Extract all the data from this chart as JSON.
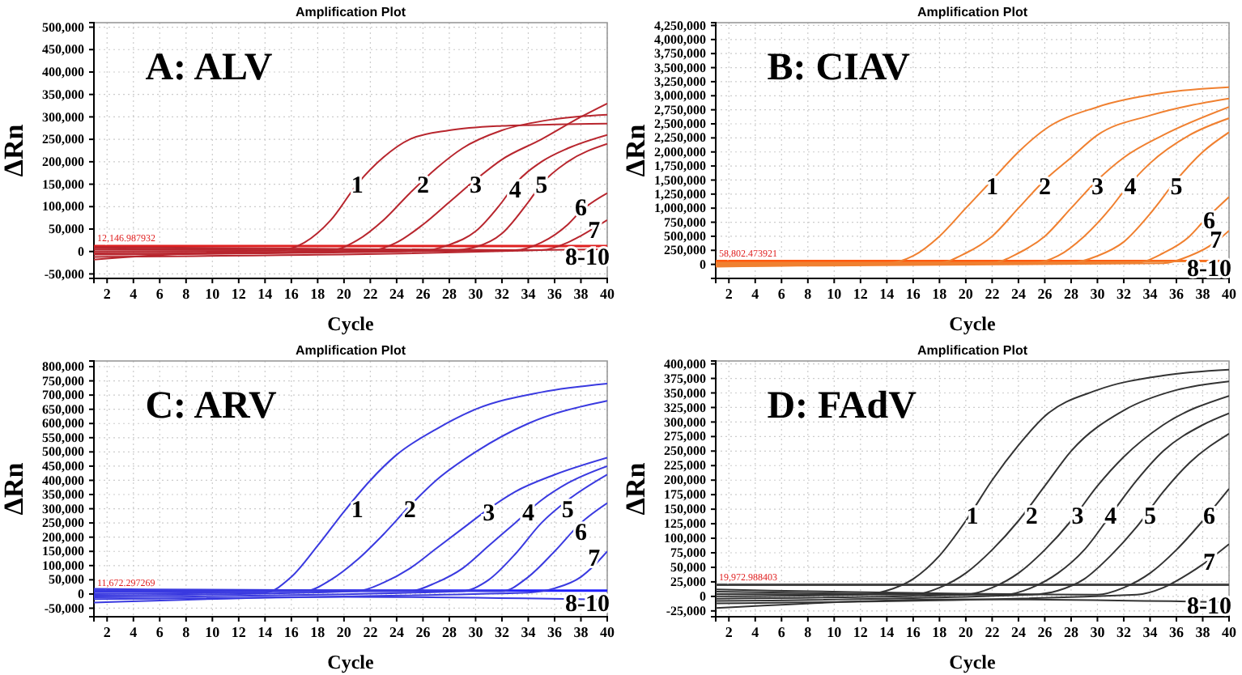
{
  "chart_data": [
    {
      "type": "line",
      "title": "Amplification Plot",
      "xlabel": "Cycle",
      "ylabel": "ΔRn",
      "grid": true,
      "line_style": "solid",
      "xlim": [
        1,
        40
      ],
      "xticks": [
        2,
        4,
        6,
        8,
        10,
        12,
        14,
        16,
        18,
        20,
        22,
        24,
        26,
        28,
        30,
        32,
        34,
        36,
        38,
        40
      ],
      "ylim": [
        -60000,
        510000
      ],
      "yticks": [
        {
          "value": -50000,
          "label": "-50,000"
        },
        {
          "value": 0,
          "label": "0"
        },
        {
          "value": 50000,
          "label": "50,000"
        },
        {
          "value": 100000,
          "label": "100,000"
        },
        {
          "value": 150000,
          "label": "150,000"
        },
        {
          "value": 200000,
          "label": "200,000"
        },
        {
          "value": 250000,
          "label": "250,000"
        },
        {
          "value": 300000,
          "label": "300,000"
        },
        {
          "value": 350000,
          "label": "350,000"
        },
        {
          "value": 400000,
          "label": "400,000"
        },
        {
          "value": 450000,
          "label": "450,000"
        },
        {
          "value": 500000,
          "label": "500,000"
        }
      ],
      "ref_lines": [
        {
          "axis": "y",
          "value": 12146.987932,
          "label": "12,146.987932",
          "color": "#e02020"
        }
      ],
      "series": [
        {
          "color": "#b8262e",
          "x": [
            1,
            15,
            17,
            19,
            21,
            23,
            25,
            28,
            32,
            36,
            40
          ],
          "values": [
            0,
            2000,
            20000,
            70000,
            150000,
            210000,
            250000,
            270000,
            280000,
            283000,
            285000
          ]
        },
        {
          "color": "#b8262e",
          "x": [
            1,
            19,
            21,
            23,
            25,
            27,
            29,
            32,
            36,
            40
          ],
          "values": [
            4000,
            3000,
            25000,
            70000,
            130000,
            185000,
            230000,
            270000,
            295000,
            305000
          ]
        },
        {
          "color": "#b8262e",
          "x": [
            1,
            22,
            24,
            26,
            28,
            30,
            32,
            35,
            38,
            40
          ],
          "values": [
            -4000,
            2000,
            20000,
            60000,
            110000,
            160000,
            205000,
            250000,
            300000,
            330000
          ]
        },
        {
          "color": "#b8262e",
          "x": [
            1,
            26,
            28,
            30,
            32,
            33,
            35,
            37,
            40
          ],
          "values": [
            7000,
            2000,
            15000,
            45000,
            110000,
            150000,
            200000,
            230000,
            260000
          ]
        },
        {
          "color": "#b8262e",
          "x": [
            1,
            28,
            30,
            32,
            34,
            35,
            37,
            40
          ],
          "values": [
            -7000,
            2000,
            10000,
            40000,
            110000,
            150000,
            200000,
            240000
          ]
        },
        {
          "color": "#b8262e",
          "x": [
            1,
            33,
            35,
            37,
            38,
            40
          ],
          "values": [
            10000,
            3000,
            20000,
            60000,
            90000,
            130000
          ]
        },
        {
          "color": "#b8262e",
          "x": [
            1,
            35,
            37,
            38,
            40
          ],
          "values": [
            -12000,
            3000,
            20000,
            35000,
            70000
          ]
        },
        {
          "color": "#b8262e",
          "x": [
            1,
            10,
            20,
            30,
            40
          ],
          "values": [
            -18000,
            -3000,
            0,
            2000,
            5000
          ]
        }
      ],
      "annotations": [
        "A: ALV",
        {
          "text": "1",
          "x": 21,
          "y": 150000
        },
        {
          "text": "2",
          "x": 26,
          "y": 150000
        },
        {
          "text": "3",
          "x": 30,
          "y": 150000
        },
        {
          "text": "4",
          "x": 33,
          "y": 140000
        },
        {
          "text": "5",
          "x": 35,
          "y": 150000
        },
        {
          "text": "6",
          "x": 38,
          "y": 100000
        },
        {
          "text": "7",
          "x": 39,
          "y": 50000
        },
        {
          "text": "8-10",
          "x": 38.5,
          "y": -10000
        }
      ]
    },
    {
      "type": "line",
      "title": "Amplification Plot",
      "xlabel": "Cycle",
      "ylabel": "ΔRn",
      "grid": true,
      "line_style": "solid",
      "xlim": [
        1,
        40
      ],
      "xticks": [
        2,
        4,
        6,
        8,
        10,
        12,
        14,
        16,
        18,
        20,
        22,
        24,
        26,
        28,
        30,
        32,
        34,
        36,
        38,
        40
      ],
      "ylim": [
        -250000,
        4300000
      ],
      "yticks": [
        {
          "value": 0,
          "label": "0"
        },
        {
          "value": 250000,
          "label": "250,000"
        },
        {
          "value": 500000,
          "label": "500,000"
        },
        {
          "value": 750000,
          "label": "750,000"
        },
        {
          "value": 1000000,
          "label": "1,000,000"
        },
        {
          "value": 1250000,
          "label": "1,250,000"
        },
        {
          "value": 1500000,
          "label": "1,500,000"
        },
        {
          "value": 1750000,
          "label": "1,750,000"
        },
        {
          "value": 2000000,
          "label": "2,000,000"
        },
        {
          "value": 2250000,
          "label": "2,250,000"
        },
        {
          "value": 2500000,
          "label": "2,500,000"
        },
        {
          "value": 2750000,
          "label": "2,750,000"
        },
        {
          "value": 3000000,
          "label": "3,000,000"
        },
        {
          "value": 3250000,
          "label": "3,250,000"
        },
        {
          "value": 3500000,
          "label": "3,500,000"
        },
        {
          "value": 3750000,
          "label": "3,750,000"
        },
        {
          "value": 4000000,
          "label": "4,000,000"
        },
        {
          "value": 4250000,
          "label": "4,250,000"
        }
      ],
      "ref_lines": [
        {
          "axis": "y",
          "value": 58802.473921,
          "label": "58,802.473921",
          "color": "#ff5a10"
        }
      ],
      "series": [
        {
          "color": "#f08030",
          "x": [
            1,
            14,
            16,
            18,
            20,
            22,
            24,
            26,
            30,
            35,
            40
          ],
          "values": [
            0,
            20000,
            150000,
            500000,
            1000000,
            1500000,
            2000000,
            2400000,
            2800000,
            3050000,
            3150000
          ]
        },
        {
          "color": "#f08030",
          "x": [
            1,
            18,
            20,
            22,
            24,
            26,
            28,
            30,
            34,
            40
          ],
          "values": [
            10000,
            30000,
            200000,
            500000,
            1000000,
            1500000,
            1900000,
            2300000,
            2650000,
            2950000
          ]
        },
        {
          "color": "#f08030",
          "x": [
            1,
            22,
            24,
            26,
            28,
            30,
            32,
            35,
            40
          ],
          "values": [
            -10000,
            30000,
            200000,
            500000,
            1000000,
            1500000,
            1900000,
            2300000,
            2800000
          ]
        },
        {
          "color": "#f08030",
          "x": [
            1,
            25,
            27,
            29,
            31,
            32,
            34,
            37,
            40
          ],
          "values": [
            20000,
            20000,
            150000,
            500000,
            1000000,
            1300000,
            1800000,
            2300000,
            2600000
          ]
        },
        {
          "color": "#f08030",
          "x": [
            1,
            28,
            30,
            32,
            34,
            36,
            38,
            40
          ],
          "values": [
            -20000,
            30000,
            150000,
            400000,
            900000,
            1500000,
            2000000,
            2350000
          ]
        },
        {
          "color": "#f08030",
          "x": [
            1,
            33,
            35,
            37,
            38,
            40
          ],
          "values": [
            30000,
            30000,
            200000,
            500000,
            750000,
            1200000
          ]
        },
        {
          "color": "#f08030",
          "x": [
            1,
            35,
            37,
            39,
            40
          ],
          "values": [
            -30000,
            20000,
            150000,
            400000,
            600000
          ]
        },
        {
          "color": "#f08030",
          "x": [
            1,
            20,
            40
          ],
          "values": [
            -40000,
            20000,
            60000
          ]
        }
      ],
      "annotations": [
        "B: CIAV",
        {
          "text": "1",
          "x": 22,
          "y": 1400000
        },
        {
          "text": "2",
          "x": 26,
          "y": 1400000
        },
        {
          "text": "3",
          "x": 30,
          "y": 1400000
        },
        {
          "text": "4",
          "x": 32.5,
          "y": 1400000
        },
        {
          "text": "5",
          "x": 36,
          "y": 1400000
        },
        {
          "text": "6",
          "x": 38.5,
          "y": 800000
        },
        {
          "text": "7",
          "x": 39,
          "y": 450000
        },
        {
          "text": "8-10",
          "x": 38.5,
          "y": -50000
        }
      ]
    },
    {
      "type": "line",
      "title": "Amplification Plot",
      "xlabel": "Cycle",
      "ylabel": "ΔRn",
      "grid": true,
      "line_style": "solid",
      "xlim": [
        1,
        40
      ],
      "xticks": [
        2,
        4,
        6,
        8,
        10,
        12,
        14,
        16,
        18,
        20,
        22,
        24,
        26,
        28,
        30,
        32,
        34,
        36,
        38,
        40
      ],
      "ylim": [
        -80000,
        820000
      ],
      "yticks": [
        {
          "value": -50000,
          "label": "-50,000"
        },
        {
          "value": 0,
          "label": "0"
        },
        {
          "value": 50000,
          "label": "50,000"
        },
        {
          "value": 100000,
          "label": "100,000"
        },
        {
          "value": 150000,
          "label": "150,000"
        },
        {
          "value": 200000,
          "label": "200,000"
        },
        {
          "value": 250000,
          "label": "250,000"
        },
        {
          "value": 300000,
          "label": "300,000"
        },
        {
          "value": 350000,
          "label": "350,000"
        },
        {
          "value": 400000,
          "label": "400,000"
        },
        {
          "value": 450000,
          "label": "450,000"
        },
        {
          "value": 500000,
          "label": "500,000"
        },
        {
          "value": 550000,
          "label": "550,000"
        },
        {
          "value": 600000,
          "label": "600,000"
        },
        {
          "value": 650000,
          "label": "650,000"
        },
        {
          "value": 700000,
          "label": "700,000"
        },
        {
          "value": 750000,
          "label": "750,000"
        },
        {
          "value": 800000,
          "label": "800,000"
        }
      ],
      "ref_lines": [
        {
          "axis": "y",
          "value": 11672.297269,
          "label": "11,672.297269",
          "color": "#2020ff"
        }
      ],
      "series": [
        {
          "color": "#3a3ae0",
          "x": [
            1,
            14,
            16,
            18,
            20,
            22,
            24,
            27,
            30,
            35,
            40
          ],
          "values": [
            0,
            5000,
            60000,
            170000,
            290000,
            400000,
            490000,
            580000,
            650000,
            710000,
            740000
          ]
        },
        {
          "color": "#3a3ae0",
          "x": [
            1,
            17,
            19,
            21,
            23,
            25,
            27,
            30,
            34,
            40
          ],
          "values": [
            6000,
            10000,
            50000,
            120000,
            210000,
            310000,
            400000,
            500000,
            600000,
            680000
          ]
        },
        {
          "color": "#3a3ae0",
          "x": [
            1,
            21,
            23,
            25,
            27,
            29,
            31,
            33,
            36,
            40
          ],
          "values": [
            -6000,
            10000,
            40000,
            90000,
            160000,
            230000,
            300000,
            360000,
            420000,
            480000
          ]
        },
        {
          "color": "#3a3ae0",
          "x": [
            1,
            25,
            27,
            29,
            31,
            33,
            35,
            37,
            40
          ],
          "values": [
            12000,
            10000,
            40000,
            90000,
            170000,
            250000,
            330000,
            390000,
            450000
          ]
        },
        {
          "color": "#3a3ae0",
          "x": [
            1,
            29,
            31,
            33,
            35,
            37,
            40
          ],
          "values": [
            -12000,
            10000,
            50000,
            140000,
            250000,
            330000,
            420000
          ]
        },
        {
          "color": "#3a3ae0",
          "x": [
            1,
            32,
            34,
            36,
            38,
            40
          ],
          "values": [
            18000,
            10000,
            60000,
            150000,
            250000,
            320000
          ]
        },
        {
          "color": "#3a3ae0",
          "x": [
            1,
            34,
            36,
            38,
            39,
            40
          ],
          "values": [
            -18000,
            5000,
            20000,
            60000,
            100000,
            150000
          ]
        },
        {
          "color": "#3a3ae0",
          "x": [
            1,
            20,
            40
          ],
          "values": [
            -30000,
            -10000,
            -20000
          ]
        }
      ],
      "annotations": [
        "C: ARV",
        {
          "text": "1",
          "x": 21,
          "y": 300000
        },
        {
          "text": "2",
          "x": 25,
          "y": 300000
        },
        {
          "text": "3",
          "x": 31,
          "y": 290000
        },
        {
          "text": "4",
          "x": 34,
          "y": 290000
        },
        {
          "text": "5",
          "x": 37,
          "y": 300000
        },
        {
          "text": "6",
          "x": 38,
          "y": 220000
        },
        {
          "text": "7",
          "x": 39,
          "y": 130000
        },
        {
          "text": "8-10",
          "x": 38.5,
          "y": -30000
        }
      ]
    },
    {
      "type": "line",
      "title": "Amplification Plot",
      "xlabel": "Cycle",
      "ylabel": "ΔRn",
      "grid": true,
      "line_style": "solid",
      "xlim": [
        1,
        40
      ],
      "xticks": [
        2,
        4,
        6,
        8,
        10,
        12,
        14,
        16,
        18,
        20,
        22,
        24,
        26,
        28,
        30,
        32,
        34,
        36,
        38,
        40
      ],
      "ylim": [
        -35000,
        405000
      ],
      "yticks": [
        {
          "value": -25000,
          "label": "-25,000"
        },
        {
          "value": 0,
          "label": "0"
        },
        {
          "value": 25000,
          "label": "25,000"
        },
        {
          "value": 50000,
          "label": "50,000"
        },
        {
          "value": 75000,
          "label": "75,000"
        },
        {
          "value": 100000,
          "label": "100,000"
        },
        {
          "value": 125000,
          "label": "125,000"
        },
        {
          "value": 150000,
          "label": "150,000"
        },
        {
          "value": 175000,
          "label": "175,000"
        },
        {
          "value": 200000,
          "label": "200,000"
        },
        {
          "value": 225000,
          "label": "225,000"
        },
        {
          "value": 250000,
          "label": "250,000"
        },
        {
          "value": 275000,
          "label": "275,000"
        },
        {
          "value": 300000,
          "label": "300,000"
        },
        {
          "value": 325000,
          "label": "325,000"
        },
        {
          "value": 350000,
          "label": "350,000"
        },
        {
          "value": 375000,
          "label": "375,000"
        },
        {
          "value": 400000,
          "label": "400,000"
        }
      ],
      "ref_lines": [
        {
          "axis": "y",
          "value": 19972.988403,
          "label": "19,972.988403",
          "color": "#444444"
        }
      ],
      "series": [
        {
          "color": "#333333",
          "x": [
            1,
            12,
            14,
            16,
            18,
            20,
            22,
            24,
            26,
            30,
            35,
            40
          ],
          "values": [
            0,
            3000,
            10000,
            30000,
            70000,
            130000,
            200000,
            260000,
            310000,
            355000,
            380000,
            390000
          ]
        },
        {
          "color": "#333333",
          "x": [
            1,
            16,
            18,
            20,
            22,
            24,
            26,
            28,
            32,
            36,
            40
          ],
          "values": [
            4000,
            3000,
            15000,
            40000,
            80000,
            130000,
            190000,
            250000,
            320000,
            355000,
            370000
          ]
        },
        {
          "color": "#333333",
          "x": [
            1,
            20,
            22,
            24,
            26,
            28,
            30,
            32,
            35,
            40
          ],
          "values": [
            -4000,
            3000,
            15000,
            40000,
            80000,
            130000,
            190000,
            240000,
            295000,
            345000
          ]
        },
        {
          "color": "#333333",
          "x": [
            1,
            23,
            25,
            27,
            29,
            31,
            33,
            35,
            38,
            40
          ],
          "values": [
            8000,
            3000,
            15000,
            40000,
            80000,
            140000,
            200000,
            250000,
            295000,
            315000
          ]
        },
        {
          "color": "#333333",
          "x": [
            1,
            25,
            27,
            29,
            31,
            33,
            35,
            37,
            40
          ],
          "values": [
            -8000,
            3000,
            10000,
            30000,
            70000,
            120000,
            180000,
            230000,
            280000
          ]
        },
        {
          "color": "#333333",
          "x": [
            1,
            30,
            32,
            34,
            36,
            38,
            40
          ],
          "values": [
            12000,
            3000,
            15000,
            40000,
            80000,
            130000,
            185000
          ]
        },
        {
          "color": "#333333",
          "x": [
            1,
            33,
            35,
            37,
            38,
            40
          ],
          "values": [
            -12000,
            3000,
            15000,
            40000,
            55000,
            90000
          ]
        },
        {
          "color": "#333333",
          "x": [
            1,
            20,
            40
          ],
          "values": [
            -20000,
            -5000,
            -10000
          ]
        }
      ],
      "annotations": [
        "D: FAdV",
        {
          "text": "1",
          "x": 20.5,
          "y": 140000
        },
        {
          "text": "2",
          "x": 25,
          "y": 140000
        },
        {
          "text": "3",
          "x": 28.5,
          "y": 140000
        },
        {
          "text": "4",
          "x": 31,
          "y": 140000
        },
        {
          "text": "5",
          "x": 34,
          "y": 140000
        },
        {
          "text": "6",
          "x": 38.5,
          "y": 140000
        },
        {
          "text": "7",
          "x": 38.5,
          "y": 60000
        },
        {
          "text": "8-10",
          "x": 38.5,
          "y": -15000
        }
      ]
    }
  ]
}
